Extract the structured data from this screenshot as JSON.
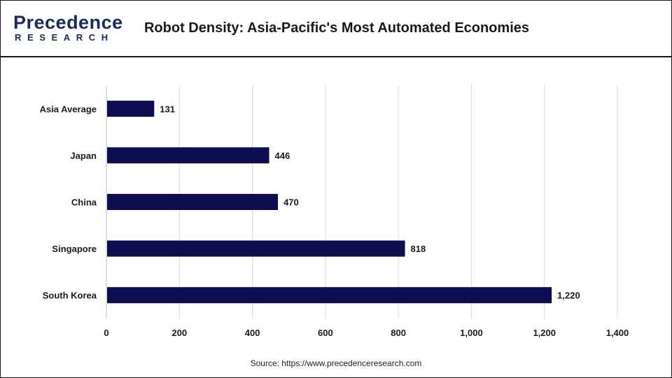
{
  "header": {
    "logo_top": "Precedence",
    "logo_bottom": "RESEARCH",
    "title": "Robot Density: Asia-Pacific's Most Automated Economies"
  },
  "source": "Source: https://www.precedenceresearch.com",
  "colors": {
    "bar": "#0d0d4f",
    "grid": "#d9d9d9",
    "brand": "#1b2a5c"
  },
  "chart_data": {
    "type": "bar",
    "orientation": "horizontal",
    "categories": [
      "Asia Average",
      "Japan",
      "China",
      "Singapore",
      "South Korea"
    ],
    "values": [
      131,
      446,
      470,
      818,
      1220
    ],
    "value_labels": [
      "131",
      "446",
      "470",
      "818",
      "1,220"
    ],
    "xlim": [
      0,
      1400
    ],
    "x_ticks": [
      0,
      200,
      400,
      600,
      800,
      1000,
      1200,
      1400
    ],
    "x_tick_labels": [
      "0",
      "200",
      "400",
      "600",
      "800",
      "1,000",
      "1,200",
      "1,400"
    ],
    "grid": true,
    "legend": "none"
  }
}
